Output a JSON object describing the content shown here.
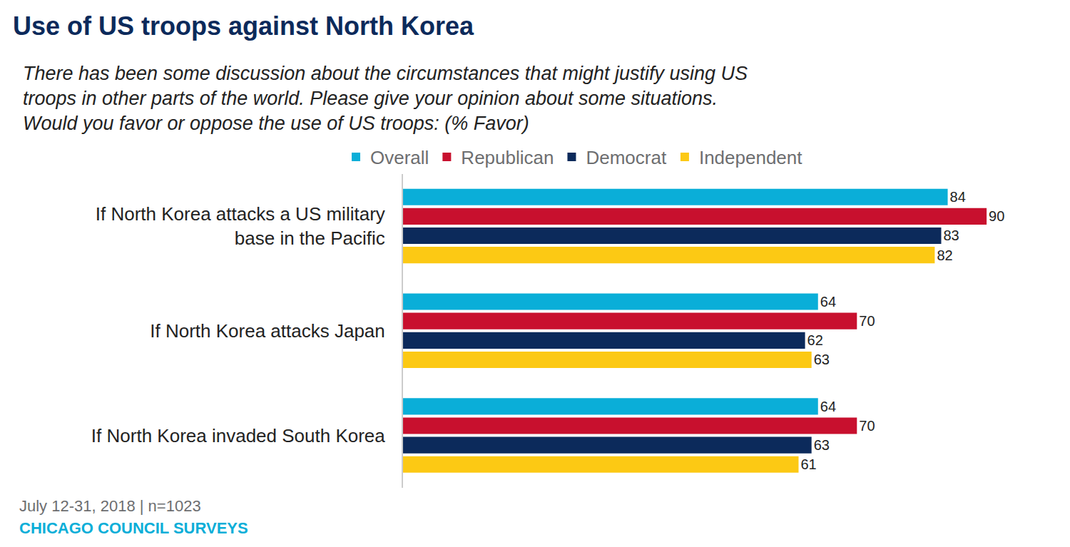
{
  "chart_data": {
    "type": "bar",
    "orientation": "horizontal",
    "title": "Use of US troops against North Korea",
    "subtitle": "There has been some discussion about the circumstances that might justify using US troops in other parts of the world. Please give your opinion about some situations. Would you favor or oppose the use of US troops: (% Favor)",
    "categories": [
      "If North Korea attacks a US military base in the Pacific",
      "If North Korea attacks Japan",
      "If North Korea invaded South Korea"
    ],
    "series": [
      {
        "name": "Overall",
        "color": "#0aaed8",
        "values": [
          84,
          64,
          64
        ]
      },
      {
        "name": "Republican",
        "color": "#c8102e",
        "values": [
          90,
          70,
          70
        ]
      },
      {
        "name": "Democrat",
        "color": "#0c2a5b",
        "values": [
          83,
          62,
          63
        ]
      },
      {
        "name": "Independent",
        "color": "#fcc914",
        "values": [
          82,
          63,
          61
        ]
      }
    ],
    "xlim": [
      0,
      100
    ],
    "grid": false,
    "legend": "top",
    "data_labels": true,
    "tick_labels": "y",
    "annotations": [
      "July 12-31, 2018 | n=1023",
      "CHICAGO COUNCIL SURVEYS"
    ]
  }
}
